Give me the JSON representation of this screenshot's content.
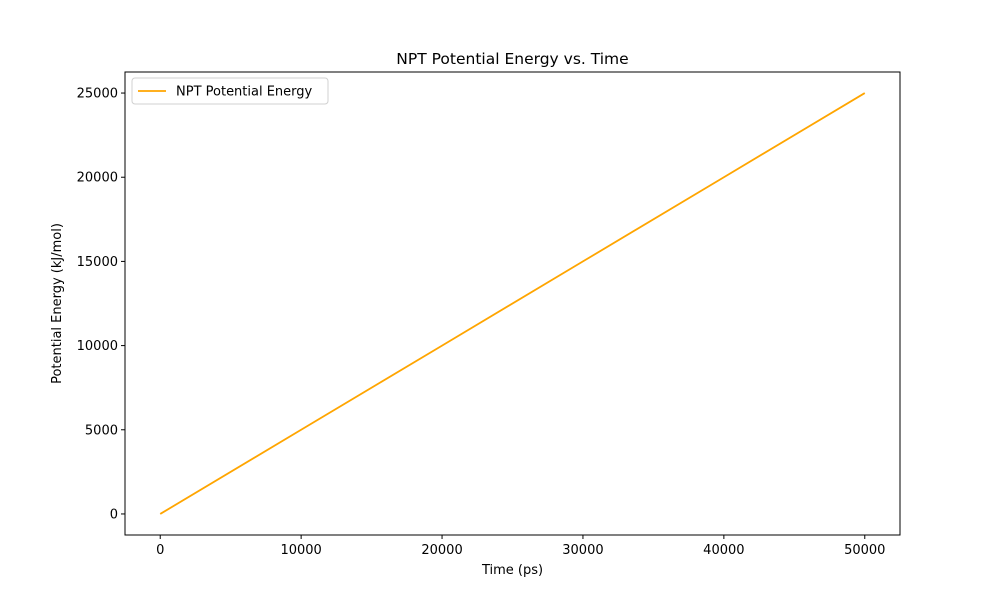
{
  "chart_data": {
    "type": "line",
    "title": "NPT Potential Energy vs. Time",
    "xlabel": "Time (ps)",
    "ylabel": "Potential Energy (kJ/mol)",
    "xlim": [
      -2500,
      52500
    ],
    "ylim": [
      -1250,
      26250
    ],
    "xticks": [
      0,
      10000,
      20000,
      30000,
      40000,
      50000
    ],
    "yticks": [
      0,
      5000,
      10000,
      15000,
      20000,
      25000
    ],
    "xtick_labels": [
      "0",
      "10000",
      "20000",
      "30000",
      "40000",
      "50000"
    ],
    "ytick_labels": [
      "0",
      "5000",
      "10000",
      "15000",
      "20000",
      "25000"
    ],
    "grid": false,
    "legend_position": "upper-left",
    "series": [
      {
        "name": "NPT Potential Energy",
        "color": "#ffa500",
        "x": [
          0,
          10000,
          20000,
          30000,
          40000,
          50000
        ],
        "y": [
          0,
          5000,
          10000,
          15000,
          20000,
          25000
        ]
      }
    ]
  }
}
